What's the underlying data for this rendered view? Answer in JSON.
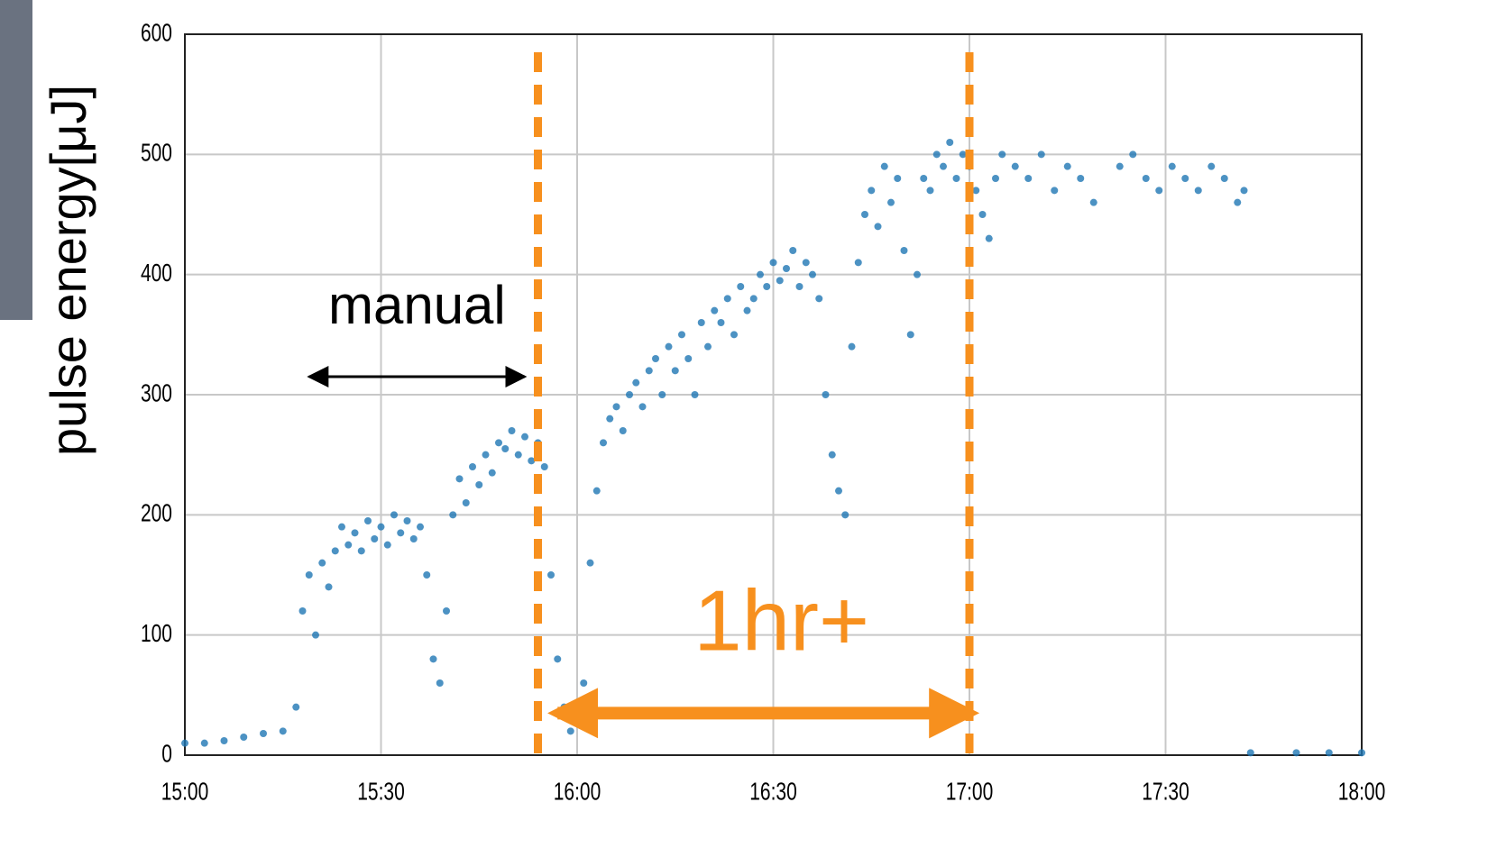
{
  "chart_data": {
    "type": "scatter",
    "y_label": "pulse energy[μJ]",
    "color": "#1f77b4",
    "x": [
      "15:00",
      "15:03",
      "15:06",
      "15:09",
      "15:12",
      "15:15",
      "15:17",
      "15:18",
      "15:19",
      "15:20",
      "15:21",
      "15:22",
      "15:23",
      "15:24",
      "15:25",
      "15:26",
      "15:27",
      "15:28",
      "15:29",
      "15:30",
      "15:31",
      "15:32",
      "15:33",
      "15:34",
      "15:35",
      "15:36",
      "15:37",
      "15:38",
      "15:39",
      "15:40",
      "15:41",
      "15:42",
      "15:43",
      "15:44",
      "15:45",
      "15:46",
      "15:47",
      "15:48",
      "15:49",
      "15:50",
      "15:51",
      "15:52",
      "15:53",
      "15:54",
      "15:55",
      "15:56",
      "15:57",
      "15:58",
      "15:59",
      "16:00",
      "16:01",
      "16:02",
      "16:03",
      "16:04",
      "16:05",
      "16:06",
      "16:07",
      "16:08",
      "16:09",
      "16:10",
      "16:11",
      "16:12",
      "16:13",
      "16:14",
      "16:15",
      "16:16",
      "16:17",
      "16:18",
      "16:19",
      "16:20",
      "16:21",
      "16:22",
      "16:23",
      "16:24",
      "16:25",
      "16:26",
      "16:27",
      "16:28",
      "16:29",
      "16:30",
      "16:31",
      "16:32",
      "16:33",
      "16:34",
      "16:35",
      "16:36",
      "16:37",
      "16:38",
      "16:39",
      "16:40",
      "16:41",
      "16:42",
      "16:43",
      "16:44",
      "16:45",
      "16:46",
      "16:47",
      "16:48",
      "16:49",
      "16:50",
      "16:51",
      "16:52",
      "16:53",
      "16:54",
      "16:55",
      "16:56",
      "16:57",
      "16:58",
      "16:59",
      "17:00",
      "17:01",
      "17:02",
      "17:03",
      "17:04",
      "17:05",
      "17:07",
      "17:09",
      "17:11",
      "17:13",
      "17:15",
      "17:17",
      "17:19",
      "17:23",
      "17:25",
      "17:27",
      "17:29",
      "17:31",
      "17:33",
      "17:35",
      "17:37",
      "17:39",
      "17:41",
      "17:42",
      "17:43",
      "17:50",
      "17:55",
      "18:00"
    ],
    "values": [
      10,
      10,
      12,
      15,
      18,
      20,
      40,
      120,
      150,
      100,
      160,
      140,
      170,
      190,
      175,
      185,
      170,
      195,
      180,
      190,
      175,
      200,
      185,
      195,
      180,
      190,
      150,
      80,
      60,
      120,
      200,
      230,
      210,
      240,
      225,
      250,
      235,
      260,
      255,
      270,
      250,
      265,
      245,
      260,
      240,
      150,
      80,
      40,
      20,
      30,
      60,
      160,
      220,
      260,
      280,
      290,
      270,
      300,
      310,
      290,
      320,
      330,
      300,
      340,
      320,
      350,
      330,
      300,
      360,
      340,
      370,
      360,
      380,
      350,
      390,
      370,
      380,
      400,
      390,
      410,
      395,
      405,
      420,
      390,
      410,
      400,
      380,
      300,
      250,
      220,
      200,
      340,
      410,
      450,
      470,
      440,
      490,
      460,
      480,
      420,
      350,
      400,
      480,
      470,
      500,
      490,
      510,
      480,
      500,
      490,
      470,
      450,
      430,
      480,
      500,
      490,
      480,
      500,
      470,
      490,
      480,
      460,
      490,
      500,
      480,
      470,
      490,
      480,
      470,
      490,
      480,
      460,
      470,
      2,
      2,
      2,
      2
    ],
    "xlim": [
      "15:00",
      "18:00"
    ],
    "xticks": [
      "15:00",
      "15:30",
      "16:00",
      "16:30",
      "17:00",
      "17:30",
      "18:00"
    ],
    "ylim": [
      0,
      600
    ],
    "yticks": [
      0,
      100,
      200,
      300,
      400,
      500,
      600
    ],
    "grid": true,
    "vlines": {
      "color": "#f7901e",
      "x": [
        "15:54",
        "17:00"
      ]
    },
    "annotations": [
      {
        "text": "manual",
        "color": "#000000",
        "x": [
          "15:19",
          "15:52"
        ],
        "y": 315
      },
      {
        "text": "1hr+",
        "color": "#f7901e",
        "x": [
          "15:57",
          "17:00"
        ],
        "y": 35
      }
    ]
  }
}
